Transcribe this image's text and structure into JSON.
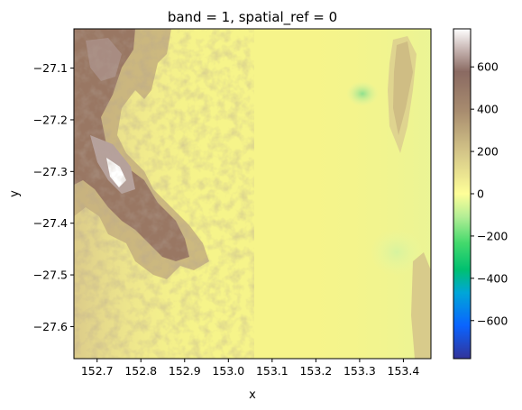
{
  "chart_data": {
    "type": "heatmap",
    "title": "band = 1, spatial_ref = 0",
    "xlabel": "x",
    "ylabel": "y",
    "xlim": [
      152.647,
      153.463
    ],
    "ylim": [
      -27.662,
      -27.024
    ],
    "x_ticks": [
      152.7,
      152.8,
      152.9,
      153.0,
      153.1,
      153.2,
      153.3,
      153.4
    ],
    "x_tick_labels": [
      "152.7",
      "152.8",
      "152.9",
      "153.0",
      "153.1",
      "153.2",
      "153.3",
      "153.4"
    ],
    "y_ticks": [
      -27.1,
      -27.2,
      -27.3,
      -27.4,
      -27.5,
      -27.6
    ],
    "y_tick_labels": [
      "−27.1",
      "−27.2",
      "−27.3",
      "−27.4",
      "−27.5",
      "−27.6"
    ],
    "colorbar": {
      "colormap": "terrain",
      "vmin": -780,
      "vmax": 780,
      "ticks": [
        600,
        400,
        200,
        0,
        -200,
        -400,
        -600
      ],
      "tick_labels": [
        "600",
        "400",
        "200",
        "0",
        "−200",
        "−400",
        "−600"
      ]
    },
    "grid": false,
    "colors": {
      "low_lowland": "#f6f48a",
      "mid": "#c9b682",
      "high": "#7d5c55",
      "peak": "#ffffff",
      "water_low": "#8fe08d"
    }
  }
}
